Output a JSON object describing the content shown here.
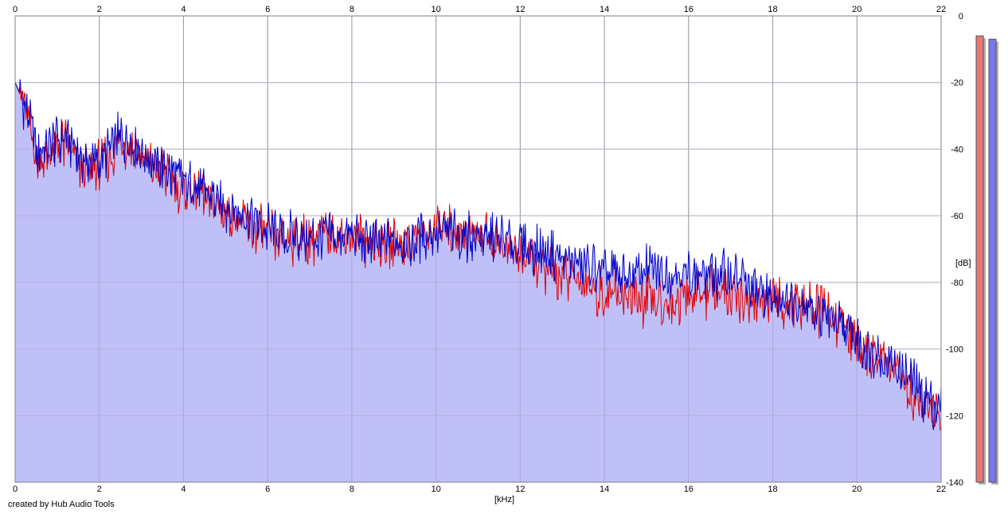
{
  "chart_data": {
    "type": "area",
    "title": "",
    "xlabel": "[kHz]",
    "ylabel": "[dB]",
    "xlim": [
      0,
      22
    ],
    "ylim": [
      -140,
      0
    ],
    "x_ticks": [
      "0",
      "2",
      "4",
      "6",
      "8",
      "10",
      "12",
      "14",
      "16",
      "18",
      "20",
      "22"
    ],
    "y_ticks": [
      "0",
      "-20",
      "-40",
      "-60",
      "-80",
      "-100",
      "-120",
      "-140"
    ],
    "grid": true,
    "fill_color": "#c0c0f8",
    "series": [
      {
        "color": "#0000c8",
        "x": [
          0,
          0.25,
          0.5,
          0.75,
          1.0,
          1.25,
          1.5,
          1.75,
          2.0,
          2.25,
          2.5,
          2.75,
          3.0,
          3.25,
          3.5,
          3.75,
          4.0,
          4.5,
          5.0,
          5.5,
          6.0,
          6.5,
          7.0,
          7.5,
          8.0,
          8.5,
          9.0,
          9.5,
          10.0,
          10.5,
          11.0,
          11.5,
          12.0,
          12.5,
          13.0,
          13.5,
          14.0,
          14.5,
          15.0,
          15.5,
          16.0,
          16.5,
          17.0,
          17.5,
          18.0,
          18.5,
          19.0,
          19.5,
          20.0,
          20.5,
          21.0,
          21.5,
          22.0
        ],
        "values": [
          -20,
          -27,
          -40,
          -41,
          -37,
          -36,
          -42,
          -44,
          -44,
          -40,
          -36,
          -37,
          -40,
          -44,
          -46,
          -48,
          -50,
          -53,
          -57,
          -60,
          -64,
          -66,
          -67,
          -66,
          -67,
          -68,
          -68,
          -67,
          -65,
          -65,
          -66,
          -67,
          -69,
          -71,
          -73,
          -75,
          -77,
          -79,
          -76,
          -77,
          -77,
          -78,
          -78,
          -81,
          -85,
          -85,
          -88,
          -92,
          -98,
          -102,
          -106,
          -113,
          -118
        ]
      },
      {
        "color": "#e00000",
        "x": [
          0,
          0.25,
          0.5,
          0.75,
          1.0,
          1.25,
          1.5,
          1.75,
          2.0,
          2.25,
          2.5,
          2.75,
          3.0,
          3.25,
          3.5,
          3.75,
          4.0,
          4.5,
          5.0,
          5.5,
          6.0,
          6.5,
          7.0,
          7.5,
          8.0,
          8.5,
          9.0,
          9.5,
          10.0,
          10.5,
          11.0,
          11.5,
          12.0,
          12.5,
          13.0,
          13.5,
          14.0,
          14.5,
          15.0,
          15.5,
          16.0,
          16.5,
          17.0,
          17.5,
          18.0,
          18.5,
          19.0,
          19.5,
          20.0,
          20.5,
          21.0,
          21.5,
          22.0
        ],
        "values": [
          -20,
          -28,
          -42,
          -44,
          -40,
          -38,
          -45,
          -47,
          -45,
          -42,
          -38,
          -39,
          -43,
          -46,
          -47,
          -50,
          -52,
          -54,
          -59,
          -63,
          -66,
          -67,
          -67,
          -66,
          -66,
          -68,
          -68,
          -67,
          -64,
          -64,
          -65,
          -68,
          -72,
          -75,
          -78,
          -80,
          -84,
          -84,
          -86,
          -86,
          -84,
          -83,
          -84,
          -86,
          -86,
          -87,
          -88,
          -91,
          -99,
          -102,
          -108,
          -117,
          -120
        ]
      }
    ],
    "meters": [
      {
        "color": "#e87878",
        "level_db": -6
      },
      {
        "color": "#7878e8",
        "level_db": -7
      }
    ]
  },
  "footer": {
    "credit": "created by Hub Audio Tools"
  }
}
